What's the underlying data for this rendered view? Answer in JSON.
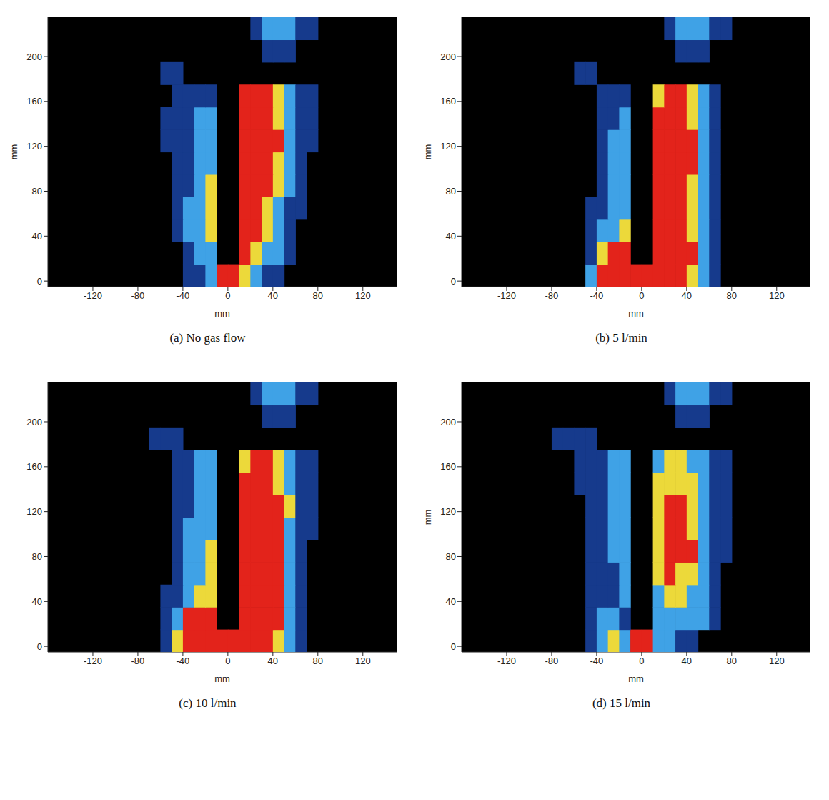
{
  "chart_data": [
    {
      "type": "heatmap",
      "title": "(a) No gas flow",
      "xlabel": "mm",
      "ylabel": "mm",
      "xlim": [
        -160,
        150
      ],
      "xticks": [
        -120,
        -80,
        -40,
        0,
        40,
        80,
        120
      ],
      "ylim": [
        -5,
        235
      ],
      "yticks": [
        0,
        40,
        80,
        120,
        160,
        200
      ],
      "x": [
        -75,
        -65,
        -55,
        -45,
        -35,
        -25,
        -15,
        -5,
        5,
        15,
        25,
        35,
        45,
        55,
        65,
        75,
        85
      ],
      "y": [
        5,
        25,
        45,
        65,
        85,
        105,
        125,
        145,
        165,
        185,
        205,
        225
      ],
      "cells": [
        [
          0,
          0,
          0,
          0,
          1,
          1,
          2,
          4,
          4,
          3,
          2,
          1,
          1,
          0,
          0,
          0,
          0
        ],
        [
          0,
          0,
          0,
          0,
          1,
          2,
          2,
          0,
          0,
          4,
          3,
          2,
          2,
          1,
          0,
          0,
          0
        ],
        [
          0,
          0,
          0,
          1,
          2,
          2,
          3,
          0,
          0,
          4,
          4,
          3,
          2,
          1,
          0,
          0,
          0
        ],
        [
          0,
          0,
          0,
          1,
          2,
          2,
          3,
          0,
          0,
          4,
          4,
          3,
          2,
          1,
          1,
          0,
          0
        ],
        [
          0,
          0,
          0,
          1,
          1,
          2,
          3,
          0,
          0,
          4,
          4,
          4,
          3,
          2,
          1,
          0,
          0
        ],
        [
          0,
          0,
          0,
          1,
          1,
          2,
          2,
          0,
          0,
          4,
          4,
          4,
          3,
          2,
          1,
          0,
          0
        ],
        [
          0,
          0,
          1,
          1,
          1,
          2,
          2,
          0,
          0,
          4,
          4,
          4,
          4,
          2,
          1,
          1,
          0
        ],
        [
          0,
          0,
          1,
          1,
          1,
          2,
          2,
          0,
          0,
          4,
          4,
          4,
          3,
          2,
          1,
          1,
          0
        ],
        [
          0,
          0,
          0,
          1,
          1,
          1,
          1,
          0,
          0,
          4,
          4,
          4,
          3,
          2,
          1,
          1,
          0
        ],
        [
          0,
          0,
          1,
          1,
          0,
          0,
          0,
          0,
          0,
          0,
          0,
          0,
          0,
          0,
          0,
          0,
          0
        ],
        [
          0,
          0,
          0,
          0,
          0,
          0,
          0,
          0,
          0,
          0,
          0,
          1,
          1,
          1,
          0,
          0,
          0
        ],
        [
          0,
          0,
          0,
          0,
          0,
          0,
          0,
          0,
          0,
          0,
          1,
          2,
          2,
          2,
          1,
          1,
          0
        ]
      ]
    },
    {
      "type": "heatmap",
      "title": "(b) 5 l/min",
      "xlabel": "mm",
      "ylabel": "mm",
      "xlim": [
        -160,
        150
      ],
      "xticks": [
        -120,
        -80,
        -40,
        0,
        40,
        80,
        120
      ],
      "ylim": [
        -5,
        235
      ],
      "yticks": [
        0,
        40,
        80,
        120,
        160,
        200
      ],
      "x": [
        -75,
        -65,
        -55,
        -45,
        -35,
        -25,
        -15,
        -5,
        5,
        15,
        25,
        35,
        45,
        55,
        65,
        75,
        85
      ],
      "y": [
        5,
        25,
        45,
        65,
        85,
        105,
        125,
        145,
        165,
        185,
        205,
        225
      ],
      "cells": [
        [
          0,
          0,
          0,
          2,
          4,
          4,
          4,
          4,
          4,
          4,
          4,
          4,
          3,
          2,
          1,
          0,
          0
        ],
        [
          0,
          0,
          0,
          1,
          3,
          4,
          4,
          0,
          0,
          4,
          4,
          4,
          4,
          2,
          1,
          0,
          0
        ],
        [
          0,
          0,
          0,
          1,
          2,
          2,
          3,
          0,
          0,
          4,
          4,
          4,
          3,
          2,
          1,
          0,
          0
        ],
        [
          0,
          0,
          0,
          1,
          1,
          2,
          2,
          0,
          0,
          4,
          4,
          4,
          3,
          2,
          1,
          0,
          0
        ],
        [
          0,
          0,
          0,
          0,
          1,
          2,
          2,
          0,
          0,
          4,
          4,
          4,
          3,
          2,
          1,
          0,
          0
        ],
        [
          0,
          0,
          0,
          0,
          1,
          2,
          2,
          0,
          0,
          4,
          4,
          4,
          4,
          2,
          1,
          0,
          0
        ],
        [
          0,
          0,
          0,
          0,
          1,
          2,
          2,
          0,
          0,
          4,
          4,
          4,
          4,
          2,
          1,
          0,
          0
        ],
        [
          0,
          0,
          0,
          0,
          1,
          1,
          2,
          0,
          0,
          4,
          4,
          4,
          3,
          2,
          1,
          0,
          0
        ],
        [
          0,
          0,
          0,
          0,
          1,
          1,
          1,
          0,
          0,
          3,
          4,
          4,
          3,
          2,
          1,
          0,
          0
        ],
        [
          0,
          0,
          1,
          1,
          0,
          0,
          0,
          0,
          0,
          0,
          0,
          0,
          0,
          0,
          0,
          0,
          0
        ],
        [
          0,
          0,
          0,
          0,
          0,
          0,
          0,
          0,
          0,
          0,
          0,
          1,
          1,
          1,
          0,
          0,
          0
        ],
        [
          0,
          0,
          0,
          0,
          0,
          0,
          0,
          0,
          0,
          0,
          1,
          2,
          2,
          2,
          1,
          1,
          0
        ]
      ]
    },
    {
      "type": "heatmap",
      "title": "(c) 10 l/min",
      "xlabel": "mm",
      "xlim": [
        -160,
        150
      ],
      "xticks": [
        -120,
        -80,
        -40,
        0,
        40,
        80,
        120
      ],
      "ylim": [
        -5,
        235
      ],
      "yticks": [
        0,
        40,
        80,
        120,
        160,
        200
      ],
      "x": [
        -75,
        -65,
        -55,
        -45,
        -35,
        -25,
        -15,
        -5,
        5,
        15,
        25,
        35,
        45,
        55,
        65,
        75,
        85
      ],
      "y": [
        5,
        25,
        45,
        65,
        85,
        105,
        125,
        145,
        165,
        185,
        205,
        225
      ],
      "cells": [
        [
          0,
          0,
          1,
          3,
          4,
          4,
          4,
          4,
          4,
          4,
          4,
          4,
          3,
          2,
          1,
          0,
          0
        ],
        [
          0,
          0,
          1,
          2,
          4,
          4,
          4,
          0,
          0,
          4,
          4,
          4,
          4,
          2,
          1,
          0,
          0
        ],
        [
          0,
          0,
          1,
          1,
          2,
          3,
          3,
          0,
          0,
          4,
          4,
          4,
          4,
          2,
          1,
          0,
          0
        ],
        [
          0,
          0,
          0,
          1,
          2,
          2,
          3,
          0,
          0,
          4,
          4,
          4,
          4,
          2,
          1,
          0,
          0
        ],
        [
          0,
          0,
          0,
          1,
          2,
          2,
          3,
          0,
          0,
          4,
          4,
          4,
          4,
          2,
          1,
          0,
          0
        ],
        [
          0,
          0,
          0,
          1,
          2,
          2,
          2,
          0,
          0,
          4,
          4,
          4,
          4,
          2,
          1,
          1,
          0
        ],
        [
          0,
          0,
          0,
          1,
          1,
          2,
          2,
          0,
          0,
          4,
          4,
          4,
          4,
          3,
          1,
          1,
          0
        ],
        [
          0,
          0,
          0,
          1,
          1,
          2,
          2,
          0,
          0,
          4,
          4,
          4,
          3,
          2,
          1,
          1,
          0
        ],
        [
          0,
          0,
          0,
          1,
          1,
          2,
          2,
          0,
          0,
          3,
          4,
          4,
          3,
          2,
          1,
          1,
          0
        ],
        [
          0,
          1,
          1,
          1,
          0,
          0,
          0,
          0,
          0,
          0,
          0,
          0,
          0,
          0,
          0,
          0,
          0
        ],
        [
          0,
          0,
          0,
          0,
          0,
          0,
          0,
          0,
          0,
          0,
          0,
          1,
          1,
          1,
          0,
          0,
          0
        ],
        [
          0,
          0,
          0,
          0,
          0,
          0,
          0,
          0,
          0,
          0,
          1,
          2,
          2,
          2,
          1,
          1,
          0
        ]
      ]
    },
    {
      "type": "heatmap",
      "title": "(d) 15 l/min",
      "xlabel": "mm",
      "ylabel": "mm",
      "xlim": [
        -160,
        150
      ],
      "xticks": [
        -120,
        -80,
        -40,
        0,
        40,
        80,
        120
      ],
      "ylim": [
        -5,
        235
      ],
      "yticks": [
        0,
        40,
        80,
        120,
        160,
        200
      ],
      "x": [
        -75,
        -65,
        -55,
        -45,
        -35,
        -25,
        -15,
        -5,
        5,
        15,
        25,
        35,
        45,
        55,
        65,
        75,
        85
      ],
      "y": [
        5,
        25,
        45,
        65,
        85,
        105,
        125,
        145,
        165,
        185,
        205,
        225
      ],
      "cells": [
        [
          0,
          0,
          0,
          1,
          2,
          3,
          2,
          4,
          4,
          2,
          2,
          1,
          1,
          0,
          0,
          0,
          0
        ],
        [
          0,
          0,
          0,
          1,
          2,
          2,
          1,
          0,
          0,
          2,
          2,
          2,
          2,
          2,
          1,
          0,
          0
        ],
        [
          0,
          0,
          0,
          1,
          1,
          1,
          2,
          0,
          0,
          2,
          3,
          3,
          2,
          2,
          1,
          0,
          0
        ],
        [
          0,
          0,
          0,
          1,
          1,
          1,
          2,
          0,
          0,
          3,
          4,
          3,
          3,
          2,
          1,
          0,
          0
        ],
        [
          0,
          0,
          0,
          1,
          1,
          2,
          2,
          0,
          0,
          3,
          4,
          4,
          4,
          2,
          1,
          1,
          0
        ],
        [
          0,
          0,
          0,
          1,
          1,
          2,
          2,
          0,
          0,
          3,
          4,
          4,
          3,
          2,
          1,
          1,
          0
        ],
        [
          0,
          0,
          0,
          1,
          1,
          2,
          2,
          0,
          0,
          3,
          4,
          4,
          3,
          2,
          1,
          1,
          0
        ],
        [
          0,
          0,
          1,
          1,
          1,
          2,
          2,
          0,
          0,
          3,
          3,
          3,
          3,
          2,
          1,
          1,
          0
        ],
        [
          0,
          0,
          1,
          1,
          1,
          2,
          2,
          0,
          0,
          2,
          3,
          3,
          2,
          2,
          1,
          1,
          0
        ],
        [
          1,
          1,
          1,
          1,
          0,
          0,
          0,
          0,
          0,
          0,
          0,
          0,
          0,
          0,
          0,
          0,
          0
        ],
        [
          0,
          0,
          0,
          0,
          0,
          0,
          0,
          0,
          0,
          0,
          0,
          1,
          1,
          1,
          0,
          0,
          0
        ],
        [
          0,
          0,
          0,
          0,
          0,
          0,
          0,
          0,
          0,
          0,
          1,
          2,
          2,
          2,
          1,
          1,
          0
        ]
      ]
    }
  ]
}
